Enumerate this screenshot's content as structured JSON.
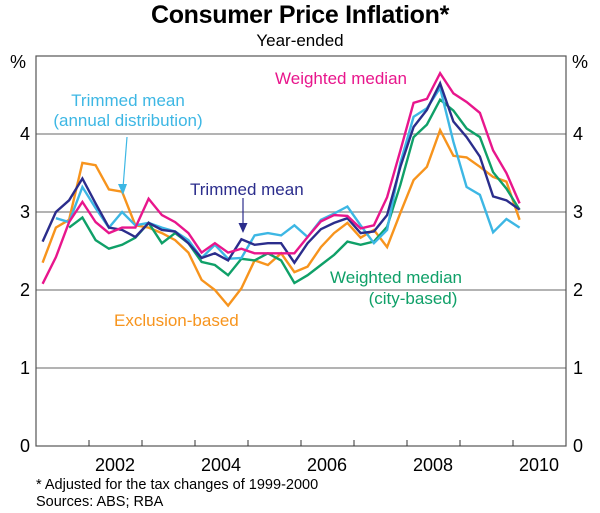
{
  "chart_data": {
    "type": "line",
    "title": "Consumer Price Inflation*",
    "subtitle": "Year-ended",
    "xlabel": "",
    "ylabel": "%",
    "ylabel_right": "%",
    "ylim": [
      0,
      5
    ],
    "xlim": [
      2001.0,
      2011.0
    ],
    "yticks": [
      0,
      1,
      2,
      3,
      4
    ],
    "xticks": [
      2002,
      2004,
      2006,
      2008,
      2010
    ],
    "grid": true,
    "x": [
      2001.125,
      2001.375,
      2001.625,
      2001.875,
      2002.125,
      2002.375,
      2002.625,
      2002.875,
      2003.125,
      2003.375,
      2003.625,
      2003.875,
      2004.125,
      2004.375,
      2004.625,
      2004.875,
      2005.125,
      2005.375,
      2005.625,
      2005.875,
      2006.125,
      2006.375,
      2006.625,
      2006.875,
      2007.125,
      2007.375,
      2007.625,
      2007.875,
      2008.125,
      2008.375,
      2008.625,
      2008.875,
      2009.125,
      2009.375,
      2009.625,
      2009.875,
      2010.125
    ],
    "series": [
      {
        "name": "Weighted median",
        "color": "#E8168C",
        "label_lines": [
          "Weighted median"
        ],
        "values": [
          2.08,
          2.42,
          2.87,
          3.13,
          2.87,
          2.73,
          2.8,
          2.8,
          3.17,
          2.96,
          2.87,
          2.73,
          2.48,
          2.6,
          2.48,
          2.53,
          2.47,
          2.47,
          2.47,
          2.47,
          2.68,
          2.88,
          2.96,
          2.95,
          2.79,
          2.83,
          3.19,
          3.79,
          4.4,
          4.45,
          4.78,
          4.52,
          4.41,
          4.27,
          3.79,
          3.5,
          3.11
        ]
      },
      {
        "name": "Trimmed mean",
        "color": "#2B2D8C",
        "label_lines": [
          "Trimmed mean"
        ],
        "values": [
          2.62,
          3.0,
          3.15,
          3.43,
          3.11,
          2.8,
          2.77,
          2.68,
          2.86,
          2.77,
          2.75,
          2.6,
          2.41,
          2.47,
          2.38,
          2.65,
          2.58,
          2.6,
          2.6,
          2.35,
          2.6,
          2.78,
          2.86,
          2.92,
          2.73,
          2.75,
          2.96,
          3.58,
          4.09,
          4.31,
          4.65,
          4.16,
          3.96,
          3.71,
          3.2,
          3.15,
          3.03
        ]
      },
      {
        "name": "Trimmed mean (annual distribution)",
        "color": "#3DB7E4",
        "label_lines": [
          "Trimmed mean",
          "(annual distribution)"
        ],
        "values": [
          null,
          2.92,
          2.87,
          3.32,
          3.05,
          2.8,
          3.0,
          2.83,
          2.86,
          2.8,
          2.75,
          2.64,
          2.41,
          2.58,
          2.4,
          2.41,
          2.7,
          2.73,
          2.7,
          2.83,
          2.68,
          2.9,
          2.98,
          3.07,
          2.83,
          2.6,
          2.77,
          3.63,
          4.22,
          4.33,
          4.59,
          3.9,
          3.32,
          3.22,
          2.74,
          2.91,
          2.8
        ]
      },
      {
        "name": "Weighted median (city-based)",
        "color": "#0FA068",
        "label_lines": [
          "Weighted median",
          "(city-based)"
        ],
        "values": [
          null,
          null,
          2.8,
          2.93,
          2.64,
          2.53,
          2.58,
          2.67,
          2.86,
          2.6,
          2.73,
          2.6,
          2.36,
          2.32,
          2.19,
          2.4,
          2.38,
          2.47,
          2.38,
          2.09,
          2.19,
          2.32,
          2.45,
          2.62,
          2.58,
          2.62,
          2.81,
          3.35,
          3.96,
          4.12,
          4.44,
          4.3,
          4.07,
          3.96,
          3.51,
          3.3,
          3.03
        ]
      },
      {
        "name": "Exclusion-based",
        "color": "#F7941D",
        "label_lines": [
          "Exclusion-based"
        ],
        "values": [
          2.35,
          2.8,
          2.9,
          3.63,
          3.6,
          3.29,
          3.26,
          2.83,
          2.8,
          2.73,
          2.64,
          2.48,
          2.13,
          2.0,
          1.8,
          2.02,
          2.38,
          2.32,
          2.47,
          2.23,
          2.3,
          2.55,
          2.73,
          2.86,
          2.67,
          2.77,
          2.55,
          2.99,
          3.41,
          3.58,
          4.05,
          3.72,
          3.7,
          3.58,
          3.45,
          3.39,
          2.9
        ]
      }
    ],
    "annotations": [
      {
        "text": "Weighted median",
        "series": "Weighted median"
      },
      {
        "text": "Trimmed mean (annual distribution)",
        "series": "Trimmed mean (annual distribution)",
        "arrow": true
      },
      {
        "text": "Trimmed mean",
        "series": "Trimmed mean",
        "arrow": true
      },
      {
        "text": "Weighted median (city-based)",
        "series": "Weighted median (city-based)"
      },
      {
        "text": "Exclusion-based",
        "series": "Exclusion-based"
      }
    ],
    "footnotes": [
      "*   Adjusted for the tax changes of 1999-2000",
      "Sources: ABS; RBA"
    ]
  },
  "header": {
    "title": "Consumer Price Inflation*",
    "subtitle": "Year-ended"
  },
  "axes": {
    "left_unit": "%",
    "right_unit": "%",
    "y_tick_labels": [
      "0",
      "1",
      "2",
      "3",
      "4"
    ],
    "x_tick_labels": [
      "2002",
      "2004",
      "2006",
      "2008",
      "2010"
    ]
  },
  "labels": {
    "weighted_median": "Weighted median",
    "trimmed_mean_annual_1": "Trimmed mean",
    "trimmed_mean_annual_2": "(annual distribution)",
    "trimmed_mean": "Trimmed mean",
    "weighted_median_city_1": "Weighted median",
    "weighted_median_city_2": "(city-based)",
    "exclusion_based": "Exclusion-based"
  },
  "footer": {
    "note": "*   Adjusted for the tax changes of 1999-2000",
    "sources": "Sources: ABS; RBA"
  }
}
